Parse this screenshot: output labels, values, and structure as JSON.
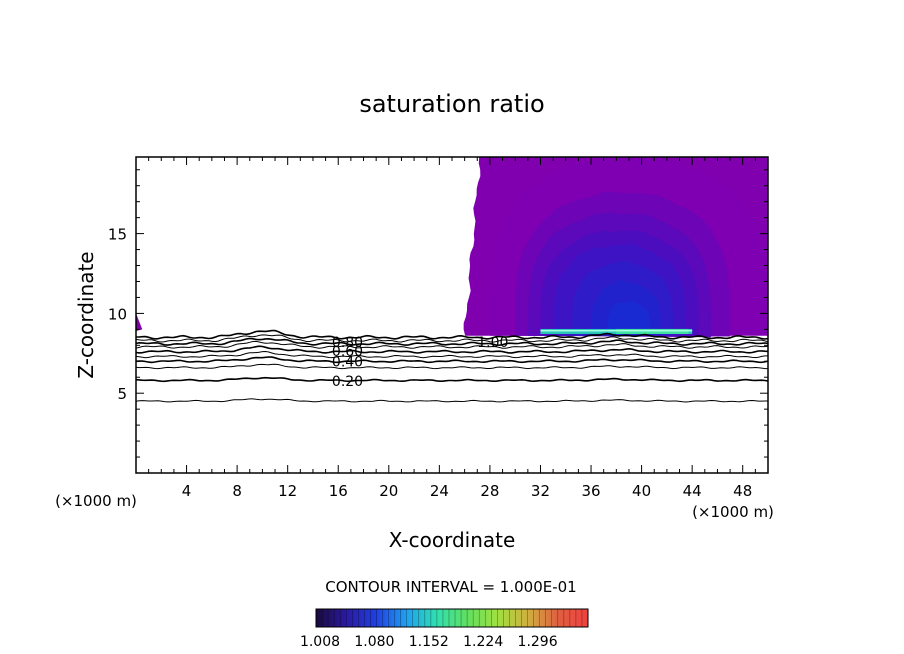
{
  "chart_data": {
    "type": "contour",
    "title": "saturation ratio",
    "xlabel": "X-coordinate",
    "ylabel": "Z-coordinate",
    "x_unit_left": "(×1000 m)",
    "x_unit_right": "(×1000 m)",
    "xlim": [
      0,
      50
    ],
    "ylim": [
      0,
      19.8
    ],
    "x_ticks": [
      4,
      8,
      12,
      16,
      20,
      24,
      28,
      32,
      36,
      40,
      44,
      48
    ],
    "y_ticks": [
      5,
      10,
      15
    ],
    "contour_interval_text": "CONTOUR INTERVAL = 1.000E-01",
    "contour_levels": [
      {
        "value": 0.1,
        "z": 4.5
      },
      {
        "value": 0.2,
        "z": 5.8
      },
      {
        "value": 0.3,
        "z": 6.6
      },
      {
        "value": 0.4,
        "z": 7.0
      },
      {
        "value": 0.5,
        "z": 7.3
      },
      {
        "value": 0.6,
        "z": 7.6
      },
      {
        "value": 0.7,
        "z": 7.9
      },
      {
        "value": 0.8,
        "z": 8.1
      },
      {
        "value": 0.9,
        "z": 8.3
      },
      {
        "value": 1.0,
        "z": 8.5
      }
    ],
    "contour_labels": [
      {
        "text": "0.20",
        "x": 15.5,
        "z": 5.75
      },
      {
        "text": "0.40",
        "x": 15.5,
        "z": 7.0
      },
      {
        "text": "0.60",
        "x": 15.5,
        "z": 7.65
      },
      {
        "text": "0.80",
        "x": 15.5,
        "z": 8.2
      },
      {
        "text": "1.00",
        "x": 27.0,
        "z": 8.2
      }
    ],
    "supersaturated_region": {
      "x_start": 26,
      "x_end": 50,
      "z_bottom": 8.6,
      "z_top": 19.8
    },
    "inner_bands": [
      {
        "x_start": 28,
        "x_end": 50,
        "z_start": 8.6,
        "z_top": 19.8,
        "color": "#7f00b2"
      },
      {
        "x_start": 30,
        "x_end": 47,
        "z_start": 8.6,
        "z_top": 17.6,
        "color": "#6d04b6"
      },
      {
        "x_start": 31,
        "x_end": 45.5,
        "z_start": 8.6,
        "z_top": 16.3,
        "color": "#5c08bb"
      },
      {
        "x_start": 32,
        "x_end": 44.5,
        "z_start": 8.6,
        "z_top": 15.2,
        "color": "#4c0dbf"
      },
      {
        "x_start": 33,
        "x_end": 43.5,
        "z_start": 8.6,
        "z_top": 14.3,
        "color": "#3d13c4"
      },
      {
        "x_start": 34.5,
        "x_end": 42.5,
        "z_start": 8.6,
        "z_top": 13.2,
        "color": "#2f1bc8"
      },
      {
        "x_start": 36,
        "x_end": 41.5,
        "z_start": 8.6,
        "z_top": 12.0,
        "color": "#2222cc"
      },
      {
        "x_start": 37.3,
        "x_end": 40.7,
        "z_start": 8.6,
        "z_top": 10.8,
        "color": "#1a2ad2"
      }
    ],
    "cloud_base_strip": {
      "x_start": 32,
      "x_end": 44,
      "z": 8.9
    },
    "colorbar": {
      "ticks": [
        "1.008",
        "1.080",
        "1.152",
        "1.224",
        "1.296"
      ],
      "range": [
        1.008,
        1.368
      ],
      "colors": [
        "#1a0a3c",
        "#2b1aa0",
        "#2040e0",
        "#20a0f0",
        "#30e0b0",
        "#60e060",
        "#a0e040",
        "#d0b040",
        "#e06040",
        "#f04040"
      ]
    }
  }
}
